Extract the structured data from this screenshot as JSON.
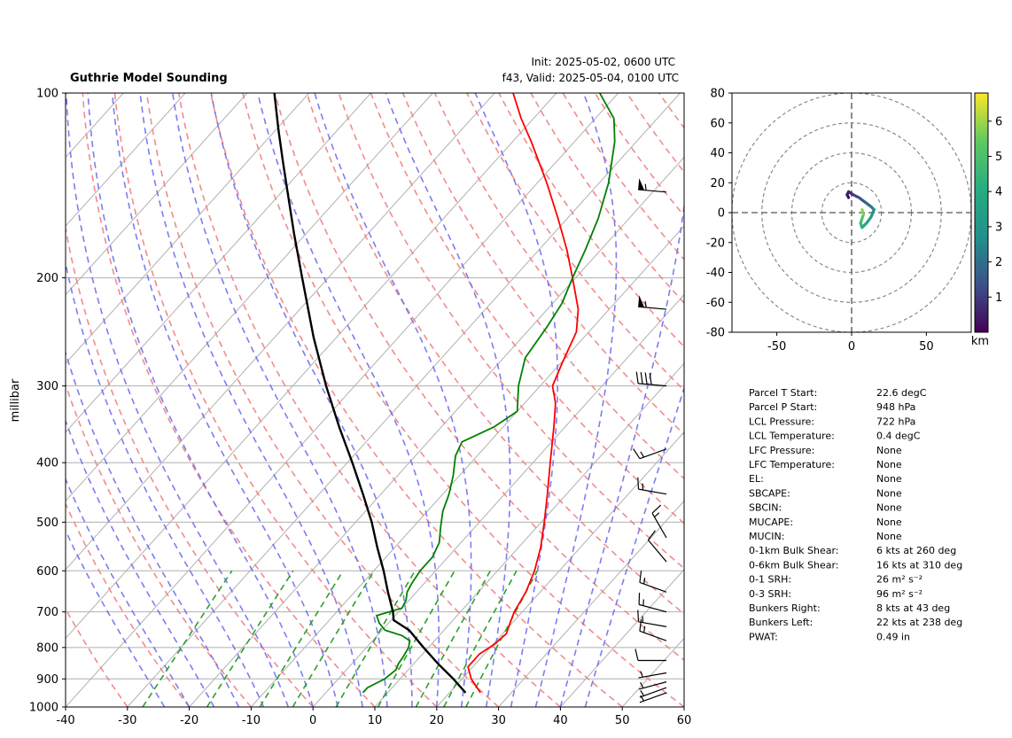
{
  "header": {
    "title": "Guthrie Model Sounding",
    "init": "Init: 2025-05-02, 0600 UTC",
    "valid": "f43, Valid: 2025-05-04, 0100 UTC"
  },
  "chart_data": [
    {
      "type": "line",
      "kind": "skew-t",
      "ylabel": "millibar",
      "xlim": [
        -40,
        60
      ],
      "ylim": [
        1000,
        100
      ],
      "y_scale": "log",
      "x_ticks": [
        -40,
        -30,
        -20,
        -10,
        0,
        10,
        20,
        30,
        40,
        50,
        60
      ],
      "p_ticks": [
        100,
        200,
        300,
        400,
        500,
        600,
        700,
        800,
        900,
        1000
      ],
      "series": [
        {
          "name": "",
          "role": "temperature",
          "color": "#ff0000",
          "points": [
            [
              948,
              25.0
            ],
            [
              900,
              21.5
            ],
            [
              860,
              19.2
            ],
            [
              820,
              19.2
            ],
            [
              790,
              20.2
            ],
            [
              760,
              20.6
            ],
            [
              735,
              19.8
            ],
            [
              700,
              18.7
            ],
            [
              650,
              17.7
            ],
            [
              600,
              16.0
            ],
            [
              550,
              13.6
            ],
            [
              500,
              10.5
            ],
            [
              450,
              6.9
            ],
            [
              400,
              2.8
            ],
            [
              350,
              -1.8
            ],
            [
              320,
              -5.0
            ],
            [
              300,
              -8.0
            ],
            [
              275,
              -9.8
            ],
            [
              245,
              -12.0
            ],
            [
              225,
              -15.0
            ],
            [
              200,
              -20.5
            ],
            [
              180,
              -25.5
            ],
            [
              160,
              -31.5
            ],
            [
              140,
              -38.5
            ],
            [
              120,
              -47.0
            ],
            [
              110,
              -52.0
            ],
            [
              100,
              -57.0
            ]
          ]
        },
        {
          "name": "",
          "role": "dewpoint",
          "color": "#008000",
          "points": [
            [
              948,
              6.0
            ],
            [
              930,
              6.0
            ],
            [
              900,
              7.5
            ],
            [
              870,
              8.0
            ],
            [
              850,
              7.5
            ],
            [
              830,
              7.3
            ],
            [
              800,
              6.8
            ],
            [
              780,
              6.0
            ],
            [
              765,
              4.0
            ],
            [
              750,
              0.5
            ],
            [
              730,
              -1.5
            ],
            [
              710,
              -3.0
            ],
            [
              690,
              0.0
            ],
            [
              670,
              -0.5
            ],
            [
              650,
              -1.5
            ],
            [
              630,
              -2.0
            ],
            [
              600,
              -2.5
            ],
            [
              570,
              -2.5
            ],
            [
              540,
              -3.5
            ],
            [
              510,
              -5.5
            ],
            [
              480,
              -7.5
            ],
            [
              450,
              -9.0
            ],
            [
              420,
              -11.0
            ],
            [
              390,
              -13.5
            ],
            [
              370,
              -14.5
            ],
            [
              350,
              -11.5
            ],
            [
              330,
              -10.0
            ],
            [
              300,
              -13.5
            ],
            [
              270,
              -16.5
            ],
            [
              240,
              -17.5
            ],
            [
              220,
              -18.5
            ],
            [
              200,
              -20.5
            ],
            [
              180,
              -22.5
            ],
            [
              160,
              -25.0
            ],
            [
              140,
              -28.5
            ],
            [
              120,
              -33.5
            ],
            [
              110,
              -37.0
            ],
            [
              100,
              -43.0
            ]
          ]
        },
        {
          "name": "",
          "role": "parcel",
          "color": "#000000",
          "points": [
            [
              948,
              22.6
            ],
            [
              900,
              18.6
            ],
            [
              850,
              13.9
            ],
            [
              800,
              9.2
            ],
            [
              750,
              4.4
            ],
            [
              722,
              0.4
            ],
            [
              700,
              -0.9
            ],
            [
              650,
              -4.6
            ],
            [
              600,
              -8.4
            ],
            [
              550,
              -12.8
            ],
            [
              500,
              -17.4
            ],
            [
              450,
              -22.9
            ],
            [
              400,
              -29.2
            ],
            [
              350,
              -36.5
            ],
            [
              300,
              -44.6
            ],
            [
              250,
              -53.7
            ],
            [
              200,
              -64.2
            ],
            [
              170,
              -71.8
            ],
            [
              150,
              -77.5
            ],
            [
              130,
              -84.0
            ],
            [
              115,
              -89.5
            ],
            [
              100,
              -95.6
            ]
          ]
        }
      ],
      "wind_barbs": [
        {
          "p": 948,
          "dir": 250,
          "speed": 3
        },
        {
          "p": 930,
          "dir": 250,
          "speed": 4
        },
        {
          "p": 910,
          "dir": 255,
          "speed": 5
        },
        {
          "p": 880,
          "dir": 260,
          "speed": 6
        },
        {
          "p": 840,
          "dir": 270,
          "speed": 10
        },
        {
          "p": 780,
          "dir": 290,
          "speed": 15
        },
        {
          "p": 740,
          "dir": 280,
          "speed": 15
        },
        {
          "p": 700,
          "dir": 285,
          "speed": 15
        },
        {
          "p": 650,
          "dir": 290,
          "speed": 15
        },
        {
          "p": 580,
          "dir": 320,
          "speed": 10
        },
        {
          "p": 530,
          "dir": 330,
          "speed": 15
        },
        {
          "p": 450,
          "dir": 280,
          "speed": 15
        },
        {
          "p": 380,
          "dir": 250,
          "speed": 15
        },
        {
          "p": 300,
          "dir": 275,
          "speed": 40
        },
        {
          "p": 225,
          "dir": 275,
          "speed": 55
        },
        {
          "p": 145,
          "dir": 275,
          "speed": 55
        }
      ]
    },
    {
      "type": "line",
      "kind": "hodograph",
      "xlim": [
        -80,
        80
      ],
      "ylim": [
        -80,
        80
      ],
      "x_ticks": [
        -50,
        0,
        50
      ],
      "y_ticks": [
        80,
        60,
        40,
        20,
        0,
        -20,
        -40,
        -60,
        -80
      ],
      "rings": [
        20,
        40,
        60,
        80
      ],
      "colorbar": {
        "ticks": [
          1,
          2,
          3,
          4,
          5,
          6
        ],
        "range": [
          0,
          6.8
        ],
        "label": "km"
      },
      "points": [
        {
          "z": 0.1,
          "u": -2,
          "v": 10
        },
        {
          "z": 0.3,
          "u": -3,
          "v": 12
        },
        {
          "z": 0.5,
          "u": -2,
          "v": 14
        },
        {
          "z": 0.8,
          "u": 1,
          "v": 12
        },
        {
          "z": 1.2,
          "u": 5,
          "v": 10
        },
        {
          "z": 1.6,
          "u": 9,
          "v": 7
        },
        {
          "z": 2.0,
          "u": 13,
          "v": 4
        },
        {
          "z": 2.5,
          "u": 15,
          "v": 2
        },
        {
          "z": 3.0,
          "u": 13,
          "v": -3
        },
        {
          "z": 3.5,
          "u": 10,
          "v": -7
        },
        {
          "z": 4.0,
          "u": 7,
          "v": -10
        },
        {
          "z": 4.5,
          "u": 6,
          "v": -7
        },
        {
          "z": 5.0,
          "u": 7,
          "v": -4
        },
        {
          "z": 5.5,
          "u": 8,
          "v": -1
        },
        {
          "z": 6.0,
          "u": 7,
          "v": 2
        }
      ]
    }
  ],
  "params": [
    {
      "label": "Parcel T Start:",
      "value": "22.6 degC"
    },
    {
      "label": "Parcel P Start:",
      "value": "948 hPa"
    },
    {
      "label": "LCL Pressure:",
      "value": "722 hPa"
    },
    {
      "label": "LCL Temperature:",
      "value": "0.4 degC"
    },
    {
      "label": "LFC Pressure:",
      "value": "None"
    },
    {
      "label": "LFC Temperature:",
      "value": "None"
    },
    {
      "label": "EL:",
      "value": "None"
    },
    {
      "label": "SBCAPE:",
      "value": "None"
    },
    {
      "label": "SBCIN:",
      "value": "None"
    },
    {
      "label": "MUCAPE:",
      "value": "None"
    },
    {
      "label": "MUCIN:",
      "value": "None"
    },
    {
      "label": "0-1km Bulk Shear:",
      "value": "6 kts at 260 deg"
    },
    {
      "label": "0-6km Bulk Shear:",
      "value": "16 kts at 310 deg"
    },
    {
      "label": "0-1 SRH:",
      "value": "26 m² s⁻²"
    },
    {
      "label": "0-3 SRH:",
      "value": "96 m² s⁻²"
    },
    {
      "label": "Bunkers Right:",
      "value": "8 kts at 43 deg"
    },
    {
      "label": "Bunkers Left:",
      "value": "22 kts at 238 deg"
    },
    {
      "label": "PWAT:",
      "value": "0.49 in"
    }
  ]
}
